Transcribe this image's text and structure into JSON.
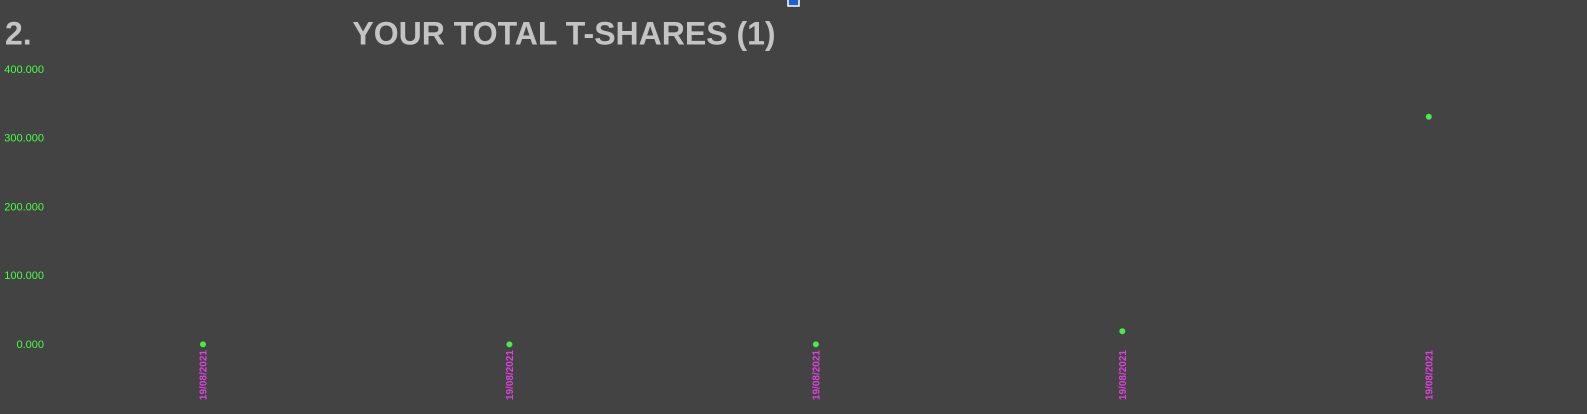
{
  "section_number": "2.",
  "chart_data": {
    "type": "scatter",
    "title": "YOUR TOTAL T-SHARES (1)",
    "categories": [
      "19/08/2021",
      "19/08/2021",
      "19/08/2021",
      "19/08/2021",
      "19/08/2021"
    ],
    "values": [
      1000,
      1000,
      1000,
      20000,
      332000
    ],
    "color": "#44ee44",
    "ylim": [
      0,
      400000
    ],
    "yticks": [
      {
        "value": 0,
        "label": "0.000"
      },
      {
        "value": 100000,
        "label": "100.000"
      },
      {
        "value": 200000,
        "label": "200.000"
      },
      {
        "value": 300000,
        "label": "300.000"
      },
      {
        "value": 400000,
        "label": "400.000"
      }
    ],
    "grid": false
  }
}
